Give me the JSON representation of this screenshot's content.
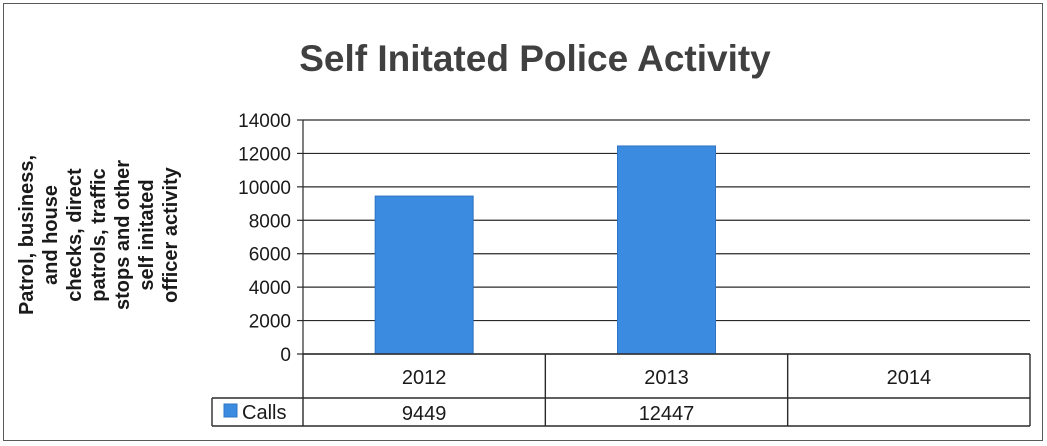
{
  "chart_data": {
    "type": "bar",
    "title": "Self Initated Police Activity",
    "ylabel": "Patrol, business, and house checks, direct patrols, traffic stops and other self initated officer activity",
    "xlabel": "",
    "categories": [
      "2012",
      "2013",
      "2014"
    ],
    "series": [
      {
        "name": "Calls",
        "values": [
          9449,
          12447,
          null
        ],
        "color": "#3b8be0"
      }
    ],
    "data_table": [
      {
        "series": "Calls",
        "cells": [
          "9449",
          "12447",
          ""
        ]
      }
    ],
    "ylim": [
      0,
      14000
    ],
    "yticks": [
      0,
      2000,
      4000,
      6000,
      8000,
      10000,
      12000,
      14000
    ],
    "grid": true,
    "legend": "data-table"
  }
}
